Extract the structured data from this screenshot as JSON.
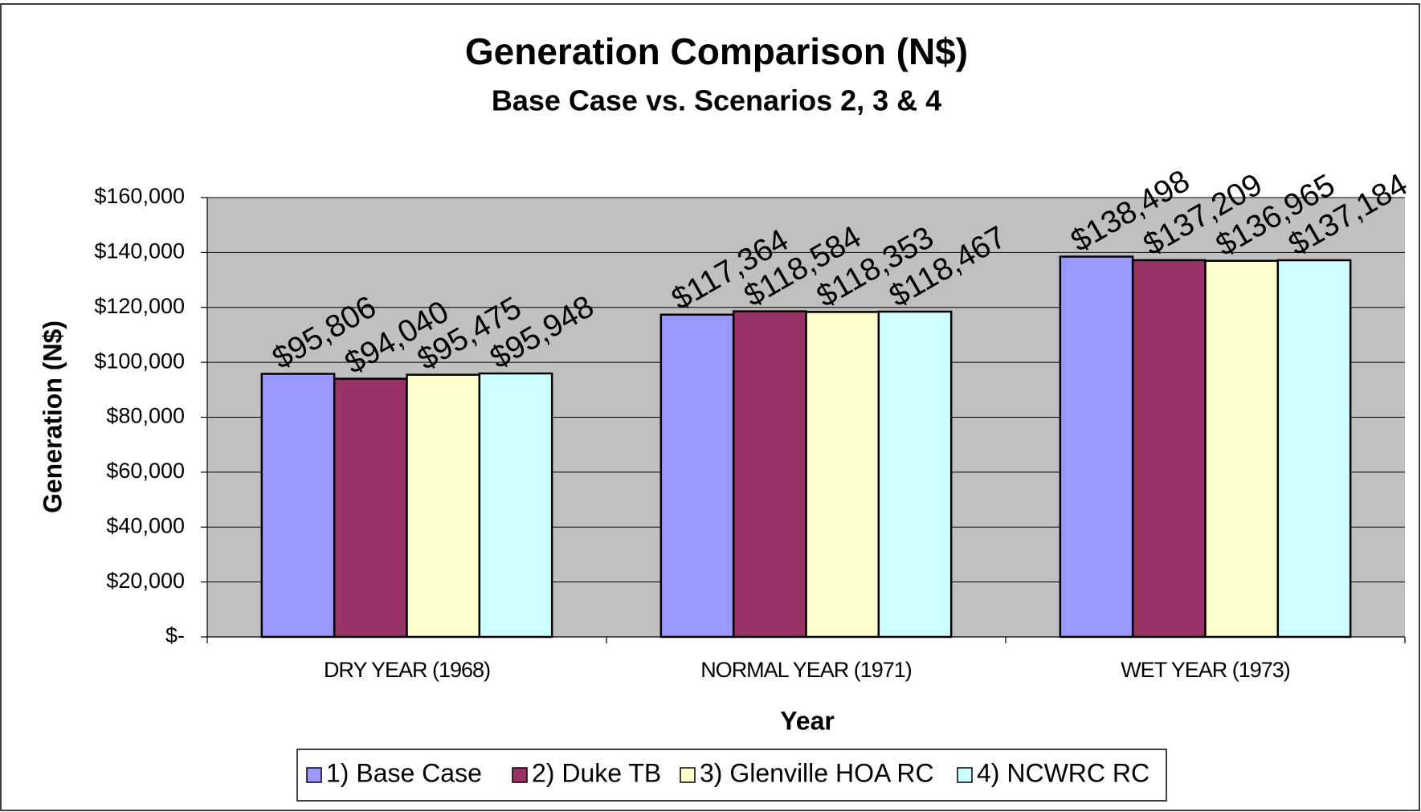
{
  "chart_data": {
    "type": "bar",
    "title": "Generation Comparison (N$)",
    "subtitle": "Base Case vs. Scenarios 2, 3 & 4",
    "x_label": "Year",
    "y_label": "Generation (N$)",
    "categories": [
      "DRY YEAR (1968)",
      "NORMAL YEAR (1971)",
      "WET YEAR (1973)"
    ],
    "series": [
      {
        "name": "1)  Base Case",
        "color": "#9999ff",
        "values": [
          95806,
          117364,
          138498
        ],
        "value_labels": [
          "$95,806",
          "$117,364",
          "$138,498"
        ]
      },
      {
        "name": "2) Duke TB",
        "color": "#993366",
        "values": [
          94040,
          118584,
          137209
        ],
        "value_labels": [
          "$94,040",
          "$118,584",
          "$137,209"
        ]
      },
      {
        "name": "3) Glenville HOA RC",
        "color": "#ffffcc",
        "values": [
          95475,
          118353,
          136965
        ],
        "value_labels": [
          "$95,475",
          "$118,353",
          "$136,965"
        ]
      },
      {
        "name": "4) NCWRC RC",
        "color": "#ccffff",
        "values": [
          95948,
          118467,
          137184
        ],
        "value_labels": [
          "$95,948",
          "$118,467",
          "$137,184"
        ]
      }
    ],
    "ylim": [
      0,
      160000
    ],
    "yticks": [
      {
        "value": 0,
        "label": "$-"
      },
      {
        "value": 20000,
        "label": "$20,000"
      },
      {
        "value": 40000,
        "label": "$40,000"
      },
      {
        "value": 60000,
        "label": "$60,000"
      },
      {
        "value": 80000,
        "label": "$80,000"
      },
      {
        "value": 100000,
        "label": "$100,000"
      },
      {
        "value": 120000,
        "label": "$120,000"
      },
      {
        "value": 140000,
        "label": "$140,000"
      },
      {
        "value": 160000,
        "label": "$160,000"
      }
    ],
    "grid": true,
    "plot_background": "#c0c0c0",
    "legend": "bottom"
  }
}
